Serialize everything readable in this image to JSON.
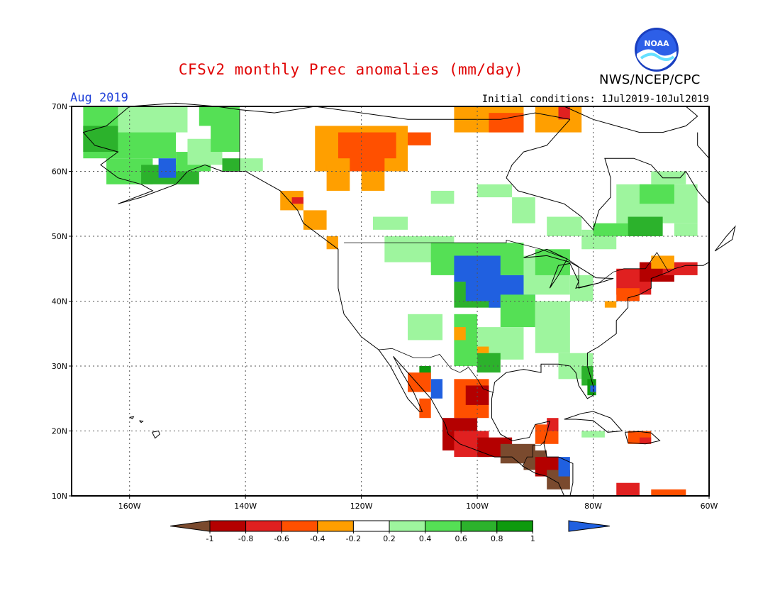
{
  "title": "CFSv2 monthly Prec anomalies (mm/day)",
  "month_label": "Aug 2019",
  "initial_conditions": "Initial conditions: 1Jul2019-10Jul2019",
  "agency": "NWS/NCEP/CPC",
  "logo_text": "NOAA",
  "map": {
    "lon_range": [
      -170,
      -60
    ],
    "lat_range": [
      10,
      70
    ],
    "lat_ticks": [
      "70N",
      "60N",
      "50N",
      "40N",
      "30N",
      "20N",
      "10N"
    ],
    "lon_ticks": [
      "160W",
      "140W",
      "120W",
      "100W",
      "80W",
      "60W"
    ],
    "grid": true,
    "gridlines_style": "dotted"
  },
  "colorbar": {
    "labels": [
      "-1",
      "-0.8",
      "-0.6",
      "-0.4",
      "-0.2",
      "0.2",
      "0.4",
      "0.6",
      "0.8",
      "1"
    ],
    "colors": [
      "#7a4a2e",
      "#b40000",
      "#e02020",
      "#ff5000",
      "#ff9f00",
      "#ffffff",
      "#9ef59e",
      "#55e055",
      "#2cb22c",
      "#0e9a0e",
      "#2060e0"
    ]
  },
  "anomaly_regions": [
    {
      "region": "Alaska",
      "category": "wet",
      "level": 0.4
    },
    {
      "region": "southern Alaska",
      "category": "wet",
      "level": 1.0
    },
    {
      "region": "Northern Canada / NW Territories",
      "category": "dry",
      "level": -0.6
    },
    {
      "region": "Nunavut / Baffin coast",
      "category": "dry",
      "level": -0.6
    },
    {
      "region": "Pacific Northwest coast",
      "category": "dry",
      "level": -0.4
    },
    {
      "region": "Upper Midwest / Central Plains",
      "category": "wet",
      "level": 1.0
    },
    {
      "region": "Eastern Canada / Quebec",
      "category": "wet",
      "level": 0.4
    },
    {
      "region": "New England",
      "category": "dry",
      "level": -0.8
    },
    {
      "region": "Florida",
      "category": "wet",
      "level": 0.8
    },
    {
      "region": "Southern Mexico",
      "category": "dry",
      "level": -1.0
    },
    {
      "region": "Central America",
      "category": "dry",
      "level": -1.0
    },
    {
      "region": "Caribbean",
      "category": "dry",
      "level": -0.6
    }
  ]
}
